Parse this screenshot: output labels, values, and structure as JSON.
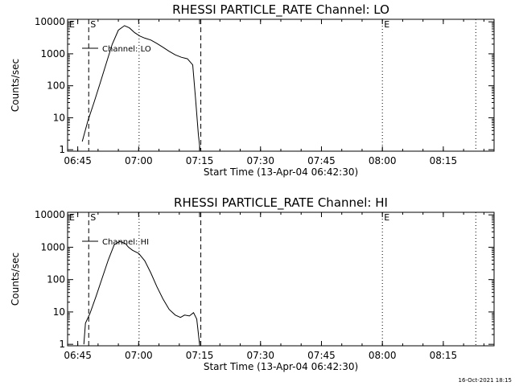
{
  "footer_text": "16-Oct-2021 18:15",
  "chart_data": [
    {
      "type": "line",
      "title": "RHESSI PARTICLE_RATE Channel: LO",
      "xlabel": "Start Time (13-Apr-04 06:42:30)",
      "ylabel": "Counts/sec",
      "x_units": "minutes since 06:42:30",
      "xlim": [
        0,
        105
      ],
      "ylim": [
        0.9,
        12000
      ],
      "yscale": "log",
      "x_ticks": [
        {
          "label": "06:45",
          "x": 2.5
        },
        {
          "label": "07:00",
          "x": 17.5
        },
        {
          "label": "07:15",
          "x": 32.5
        },
        {
          "label": "07:30",
          "x": 47.5
        },
        {
          "label": "07:45",
          "x": 62.5
        },
        {
          "label": "08:00",
          "x": 77.5
        },
        {
          "label": "08:15",
          "x": 92.5
        }
      ],
      "y_ticks": [
        {
          "label": "1",
          "y": 1
        },
        {
          "label": "10",
          "y": 10
        },
        {
          "label": "100",
          "y": 100
        },
        {
          "label": "1000",
          "y": 1000
        },
        {
          "label": "10000",
          "y": 10000
        }
      ],
      "markers": [
        {
          "label": "E",
          "x": 0,
          "style": "dotted"
        },
        {
          "label": "S",
          "x": 5.2,
          "style": "dashed"
        },
        {
          "label": "",
          "x": 17.6,
          "style": "dotted"
        },
        {
          "label": "",
          "x": 32.8,
          "style": "dashed"
        },
        {
          "label": "E",
          "x": 77.5,
          "style": "dotted"
        },
        {
          "label": "",
          "x": 100.5,
          "style": "dotted"
        }
      ],
      "series": [
        {
          "name": "Channel: LO",
          "x": [
            3.6,
            5.0,
            6.5,
            8.0,
            9.5,
            11.0,
            12.5,
            14.0,
            15.2,
            16.5,
            17.8,
            19.0,
            20.5,
            22.0,
            23.5,
            25.0,
            26.5,
            28.0,
            29.5,
            30.8,
            31.5,
            32.2,
            32.6
          ],
          "y": [
            1.8,
            8,
            30,
            120,
            500,
            2000,
            5500,
            7600,
            6500,
            4600,
            3600,
            3100,
            2700,
            2100,
            1600,
            1200,
            930,
            780,
            700,
            450,
            40,
            3,
            1
          ]
        }
      ]
    },
    {
      "type": "line",
      "title": "RHESSI PARTICLE_RATE Channel: HI",
      "xlabel": "Start Time (13-Apr-04 06:42:30)",
      "ylabel": "Counts/sec",
      "x_units": "minutes since 06:42:30",
      "xlim": [
        0,
        105
      ],
      "ylim": [
        0.9,
        12000
      ],
      "yscale": "log",
      "x_ticks": [
        {
          "label": "06:45",
          "x": 2.5
        },
        {
          "label": "07:00",
          "x": 17.5
        },
        {
          "label": "07:15",
          "x": 32.5
        },
        {
          "label": "07:30",
          "x": 47.5
        },
        {
          "label": "07:45",
          "x": 62.5
        },
        {
          "label": "08:00",
          "x": 77.5
        },
        {
          "label": "08:15",
          "x": 92.5
        }
      ],
      "y_ticks": [
        {
          "label": "1",
          "y": 1
        },
        {
          "label": "10",
          "y": 10
        },
        {
          "label": "100",
          "y": 100
        },
        {
          "label": "1000",
          "y": 1000
        },
        {
          "label": "10000",
          "y": 10000
        }
      ],
      "markers": [
        {
          "label": "E",
          "x": 0,
          "style": "dotted"
        },
        {
          "label": "S",
          "x": 5.2,
          "style": "dashed"
        },
        {
          "label": "",
          "x": 17.6,
          "style": "dotted"
        },
        {
          "label": "",
          "x": 32.8,
          "style": "dashed"
        },
        {
          "label": "E",
          "x": 77.5,
          "style": "dotted"
        },
        {
          "label": "",
          "x": 100.5,
          "style": "dotted"
        }
      ],
      "series": [
        {
          "name": "Channel: HI",
          "x": [
            4.0,
            4.4,
            5.5,
            7.0,
            8.5,
            10.0,
            11.5,
            12.8,
            14.2,
            15.0,
            16.0,
            17.5,
            19.0,
            20.5,
            22.0,
            23.5,
            25.0,
            26.5,
            27.8,
            28.8,
            30.0,
            31.0,
            31.8,
            32.5
          ],
          "y": [
            1,
            4.5,
            9,
            30,
            110,
            400,
            1200,
            1500,
            1300,
            1000,
            800,
            650,
            380,
            160,
            60,
            25,
            12,
            8,
            6.8,
            8,
            7.5,
            9.5,
            6,
            1
          ]
        }
      ]
    }
  ]
}
